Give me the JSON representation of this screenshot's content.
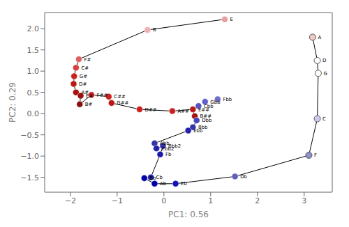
{
  "chart_data": {
    "type": "scatter",
    "xlabel": "PC1: 0.56",
    "ylabel": "PC2: 0.29",
    "xlim": [
      -2.55,
      3.6
    ],
    "ylim": [
      -1.85,
      2.38
    ],
    "xticks": [
      {
        "value": -2,
        "label": "−2"
      },
      {
        "value": -1,
        "label": "−1"
      },
      0,
      1,
      2,
      3
    ],
    "yticks": [
      {
        "value": -1.5,
        "label": "−1.5"
      },
      {
        "value": -1.0,
        "label": "−1.0"
      },
      {
        "value": -0.5,
        "label": "−0.5"
      },
      {
        "value": 0.0,
        "label": "0.0"
      },
      0.5,
      {
        "value": 1.0,
        "label": "1.0"
      },
      1.5,
      {
        "value": 2.0,
        "label": "2.0"
      }
    ],
    "grid": false,
    "data_labels": true,
    "points": [
      {
        "label": "E",
        "x": 1.3,
        "y": 2.22,
        "color": "#e8a0a0"
      },
      {
        "label": "B",
        "x": -0.35,
        "y": 1.97,
        "color": "#f0b0b0"
      },
      {
        "label": "F#",
        "x": -1.82,
        "y": 1.28,
        "color": "#e06060"
      },
      {
        "label": "C#",
        "x": -1.88,
        "y": 1.08,
        "color": "#d84040"
      },
      {
        "label": "G#",
        "x": -1.92,
        "y": 0.88,
        "color": "#cc2020"
      },
      {
        "label": "D#",
        "x": -1.93,
        "y": 0.7,
        "color": "#bb1818"
      },
      {
        "label": "A#",
        "x": -1.88,
        "y": 0.5,
        "color": "#aa1010"
      },
      {
        "label": "E#",
        "x": -1.78,
        "y": 0.42,
        "color": "#991010"
      },
      {
        "label": "B#",
        "x": -1.8,
        "y": 0.22,
        "color": "#881010"
      },
      {
        "label": "F##",
        "x": -1.55,
        "y": 0.44,
        "color": "#cc2020"
      },
      {
        "label": "C##",
        "x": -1.18,
        "y": 0.4,
        "color": "#cc2020"
      },
      {
        "label": "G##",
        "x": -1.12,
        "y": 0.25,
        "color": "#bb1818"
      },
      {
        "label": "D##",
        "x": -0.52,
        "y": 0.1,
        "color": "#cc2020"
      },
      {
        "label": "A##",
        "x": 0.18,
        "y": 0.06,
        "color": "#cc2020"
      },
      {
        "label": "E##",
        "x": 0.62,
        "y": 0.1,
        "color": "#bb1818"
      },
      {
        "label": "B##",
        "x": 0.66,
        "y": -0.06,
        "color": "#aa1010"
      },
      {
        "label": "Fbb",
        "x": 1.15,
        "y": 0.34,
        "color": "#7070cc"
      },
      {
        "label": "Gbb",
        "x": 0.88,
        "y": 0.28,
        "color": "#6060cc"
      },
      {
        "label": "Cbb",
        "x": 0.74,
        "y": 0.18,
        "color": "#5555bb"
      },
      {
        "label": "Dbb",
        "x": 0.7,
        "y": -0.16,
        "color": "#4444bb"
      },
      {
        "label": "Bbb",
        "x": 0.62,
        "y": -0.32,
        "color": "#3333aa"
      },
      {
        "label": "Ebb",
        "x": 0.52,
        "y": -0.4,
        "color": "#2222aa"
      },
      {
        "label": "Abb",
        "x": -0.2,
        "y": -0.7,
        "color": "#3333aa"
      },
      {
        "label": "Bbb2",
        "x": -0.02,
        "y": -0.76,
        "color": "#3333aa"
      },
      {
        "label": "Ebb2",
        "x": -0.16,
        "y": -0.82,
        "color": "#2222aa"
      },
      {
        "label": "Fb",
        "x": -0.08,
        "y": -0.96,
        "color": "#1818aa"
      },
      {
        "label": "Cb",
        "x": -0.28,
        "y": -1.5,
        "color": "#2222aa"
      },
      {
        "label": "Bb",
        "x": -0.42,
        "y": -1.52,
        "color": "#0000aa"
      },
      {
        "label": "Ab",
        "x": -0.2,
        "y": -1.65,
        "color": "#0000aa"
      },
      {
        "label": "Eb",
        "x": 0.25,
        "y": -1.65,
        "color": "#1111bb"
      },
      {
        "label": "Db",
        "x": 1.52,
        "y": -1.48,
        "color": "#6060bb"
      },
      {
        "label": "A",
        "x": 3.18,
        "y": 1.8,
        "color": "#f0c8c8",
        "marker": "open"
      },
      {
        "label": "D",
        "x": 3.28,
        "y": 1.25,
        "color": "#ffffff",
        "marker": "open"
      },
      {
        "label": "G",
        "x": 3.3,
        "y": 0.95,
        "color": "#ffffff",
        "marker": "open"
      },
      {
        "label": "C",
        "x": 3.28,
        "y": -0.12,
        "color": "#ccccee",
        "marker": "open"
      },
      {
        "label": "F",
        "x": 3.1,
        "y": -0.98,
        "color": "#9090cc",
        "marker": "open"
      }
    ],
    "line": [
      [
        3.18,
        1.8
      ],
      [
        3.28,
        1.25
      ],
      [
        3.3,
        0.95
      ],
      [
        3.28,
        -0.12
      ],
      [
        3.1,
        -0.98
      ],
      [
        1.52,
        -1.48
      ],
      [
        0.25,
        -1.65
      ],
      [
        -0.2,
        -1.65
      ],
      [
        -0.42,
        -1.52
      ],
      [
        -0.28,
        -1.5
      ],
      [
        -0.08,
        -0.96
      ],
      [
        -0.02,
        -0.76
      ],
      [
        -0.16,
        -0.82
      ],
      [
        -0.2,
        -0.7
      ],
      [
        0.52,
        -0.4
      ],
      [
        0.62,
        -0.32
      ],
      [
        0.7,
        -0.16
      ],
      [
        0.66,
        -0.06
      ],
      [
        0.62,
        0.1
      ],
      [
        0.18,
        0.06
      ],
      [
        -0.52,
        0.1
      ],
      [
        -1.12,
        0.25
      ],
      [
        -1.18,
        0.4
      ],
      [
        -1.55,
        0.44
      ],
      [
        -1.8,
        0.22
      ],
      [
        -1.78,
        0.42
      ],
      [
        -1.88,
        0.5
      ],
      [
        -1.93,
        0.7
      ],
      [
        -1.92,
        0.88
      ],
      [
        -1.88,
        1.08
      ],
      [
        -1.82,
        1.28
      ],
      [
        -0.35,
        1.97
      ],
      [
        1.3,
        2.22
      ]
    ]
  }
}
